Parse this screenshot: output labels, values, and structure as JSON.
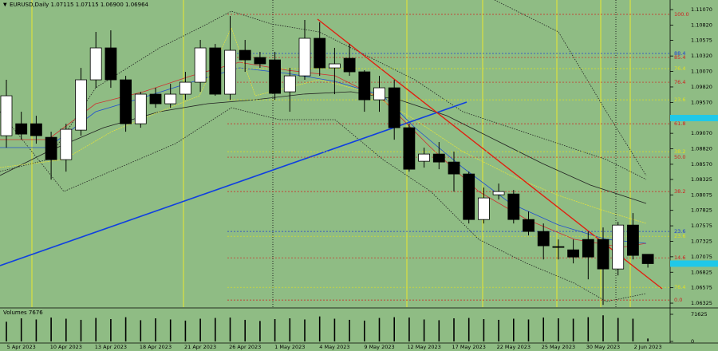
{
  "chart_data": {
    "type": "candlestick",
    "title": "EURUSD,Daily  1.07115 1.07115 1.06900 1.06964",
    "categories": [
      null,
      "5 Apr 2023",
      null,
      null,
      "10 Apr 2023",
      null,
      null,
      "13 Apr 2023",
      null,
      null,
      "18 Apr 2023",
      null,
      null,
      "21 Apr 2023",
      null,
      null,
      "26 Apr 2023",
      null,
      null,
      "1 May 2023",
      null,
      null,
      "4 May 2023",
      null,
      null,
      "9 May 2023",
      null,
      null,
      "12 May 2023",
      null,
      null,
      "17 May 2023",
      null,
      null,
      "22 May 2023",
      null,
      null,
      "25 May 2023",
      null,
      null,
      "30 May 2023",
      null,
      null,
      "2 Jun 2023"
    ],
    "series": [
      {
        "name": "open",
        "values": [
          1.09032,
          1.09225,
          1.09225,
          1.09006,
          1.08645,
          1.09122,
          1.09935,
          1.10451,
          1.09935,
          1.09225,
          1.09703,
          1.09548,
          1.09703,
          1.09896,
          1.10451,
          1.09703,
          1.10412,
          1.10296,
          1.10257,
          1.09741,
          1.09999,
          1.10606,
          1.10128,
          1.10283,
          1.10064,
          1.09612,
          1.09806,
          1.09161,
          1.08619,
          1.08735,
          1.08606,
          1.08413,
          1.07677,
          1.08077,
          1.0809,
          1.07677,
          1.07484,
          1.07239,
          1.07187,
          1.07355,
          1.07355,
          1.06878,
          1.07587,
          1.07115
        ]
      },
      {
        "name": "high",
        "values": [
          1.09935,
          1.09419,
          1.09354,
          1.09096,
          1.09225,
          1.10128,
          1.10709,
          1.10735,
          1.09999,
          1.09741,
          1.09806,
          1.0987,
          1.10064,
          1.1058,
          1.10515,
          1.10967,
          1.1058,
          1.10386,
          1.10386,
          1.10128,
          1.10902,
          1.10864,
          1.10451,
          1.10515,
          1.1009,
          1.09999,
          1.09935,
          1.09225,
          1.08838,
          1.08929,
          1.08774,
          1.08451,
          1.08193,
          1.08258,
          1.08155,
          1.07806,
          1.07613,
          1.07355,
          1.07355,
          1.07484,
          1.07548,
          1.07639,
          1.07781,
          1.07115
        ]
      },
      {
        "name": "low",
        "values": [
          1.08838,
          1.08967,
          1.08903,
          1.08322,
          1.08451,
          1.09032,
          1.09806,
          1.09806,
          1.09096,
          1.09161,
          1.09483,
          1.09483,
          1.09612,
          1.09741,
          1.09677,
          1.09612,
          1.10064,
          1.10128,
          1.09612,
          1.09419,
          1.09935,
          1.09999,
          1.09703,
          1.09999,
          1.09419,
          1.09419,
          1.08967,
          1.08451,
          1.08516,
          1.0849,
          1.08129,
          1.07613,
          1.07613,
          1.08,
          1.07613,
          1.07419,
          1.07032,
          1.07032,
          1.06968,
          1.0671,
          1.06297,
          1.06774,
          1.07032,
          1.069
        ]
      },
      {
        "name": "close",
        "values": [
          1.09677,
          1.09058,
          1.09032,
          1.08645,
          1.09135,
          1.09935,
          1.10451,
          1.09935,
          1.09225,
          1.09703,
          1.09548,
          1.09703,
          1.09896,
          1.10451,
          1.09703,
          1.10412,
          1.10257,
          1.10193,
          1.09716,
          1.09999,
          1.10606,
          1.10128,
          1.10193,
          1.10064,
          1.09612,
          1.09806,
          1.09161,
          1.0849,
          1.08735,
          1.08606,
          1.08413,
          1.07677,
          1.08026,
          1.08129,
          1.07677,
          1.07484,
          1.07252,
          1.07226,
          1.07071,
          1.07071,
          1.06878,
          1.07587,
          1.07097,
          1.06964
        ]
      }
    ],
    "ylim": [
      1.06261,
      1.11225
    ],
    "yticks": [
      {
        "value": 1.1107,
        "label": "1.11070"
      },
      {
        "value": 1.1082,
        "label": "1.10820"
      },
      {
        "value": 1.10575,
        "label": "1.10575"
      },
      {
        "value": 1.1032,
        "label": "1.10320"
      },
      {
        "value": 1.1007,
        "label": "1.10070"
      },
      {
        "value": 1.0982,
        "label": "1.09820"
      },
      {
        "value": 1.0957,
        "label": "1.09570"
      },
      {
        "value": 1.0907,
        "label": "1.09070"
      },
      {
        "value": 1.0882,
        "label": "1.08820"
      },
      {
        "value": 1.0857,
        "label": "1.08570"
      },
      {
        "value": 1.08325,
        "label": "1.08325"
      },
      {
        "value": 1.08075,
        "label": "1.08075"
      },
      {
        "value": 1.07825,
        "label": "1.07825"
      },
      {
        "value": 1.07575,
        "label": "1.07575"
      },
      {
        "value": 1.07325,
        "label": "1.07325"
      },
      {
        "value": 1.07075,
        "label": "1.07075"
      },
      {
        "value": 1.06825,
        "label": "1.06825"
      },
      {
        "value": 1.06575,
        "label": "1.06575"
      },
      {
        "value": 1.06325,
        "label": "1.06325"
      }
    ],
    "levels": [
      {
        "value": 1.10993,
        "label": "100.0",
        "color": "#d02020"
      },
      {
        "value": 1.10361,
        "label": "88.4",
        "color": "#2040d0"
      },
      {
        "value": 1.10296,
        "label": "85.4",
        "color": "#d02020"
      },
      {
        "value": 1.10116,
        "label": "76.4",
        "color": "#e0e020"
      },
      {
        "value": 1.09896,
        "label": "76.4",
        "color": "#d02020"
      },
      {
        "value": 1.09612,
        "label": "23.6",
        "color": "#e0e020"
      },
      {
        "value": 1.09225,
        "label": "61.8",
        "color": "#d02020"
      },
      {
        "value": 1.08774,
        "label": "38.2",
        "color": "#e0e020"
      },
      {
        "value": 1.08684,
        "label": "50.0",
        "color": "#d02020"
      },
      {
        "value": 1.08129,
        "label": "38.2",
        "color": "#d02020"
      },
      {
        "value": 1.07484,
        "label": "23.6",
        "color": "#2040d0"
      },
      {
        "value": 1.07406,
        "label": "23.6",
        "color": "#e0e020"
      },
      {
        "value": 1.07058,
        "label": "14.6",
        "color": "#d02020"
      },
      {
        "value": 1.06581,
        "label": "76.4",
        "color": "#e0e020"
      },
      {
        "value": 1.06375,
        "label": "0.0",
        "color": "#d02020"
      }
    ],
    "volume": {
      "label": "Volumes 7676",
      "values": [
        52000,
        61000,
        58000,
        63000,
        60000,
        57000,
        62000,
        59000,
        64000,
        56000,
        61000,
        58000,
        55000,
        60000,
        62000,
        63000,
        57000,
        54000,
        59000,
        61000,
        58000,
        66000,
        60000,
        57000,
        55000,
        62000,
        64000,
        63000,
        58000,
        56000,
        61000,
        62000,
        59000,
        57000,
        60000,
        58000,
        63000,
        61000,
        60000,
        64000,
        69000,
        62000,
        60000,
        7676
      ],
      "ylim": [
        0,
        71625
      ],
      "yticks": [
        71625,
        0
      ]
    }
  }
}
